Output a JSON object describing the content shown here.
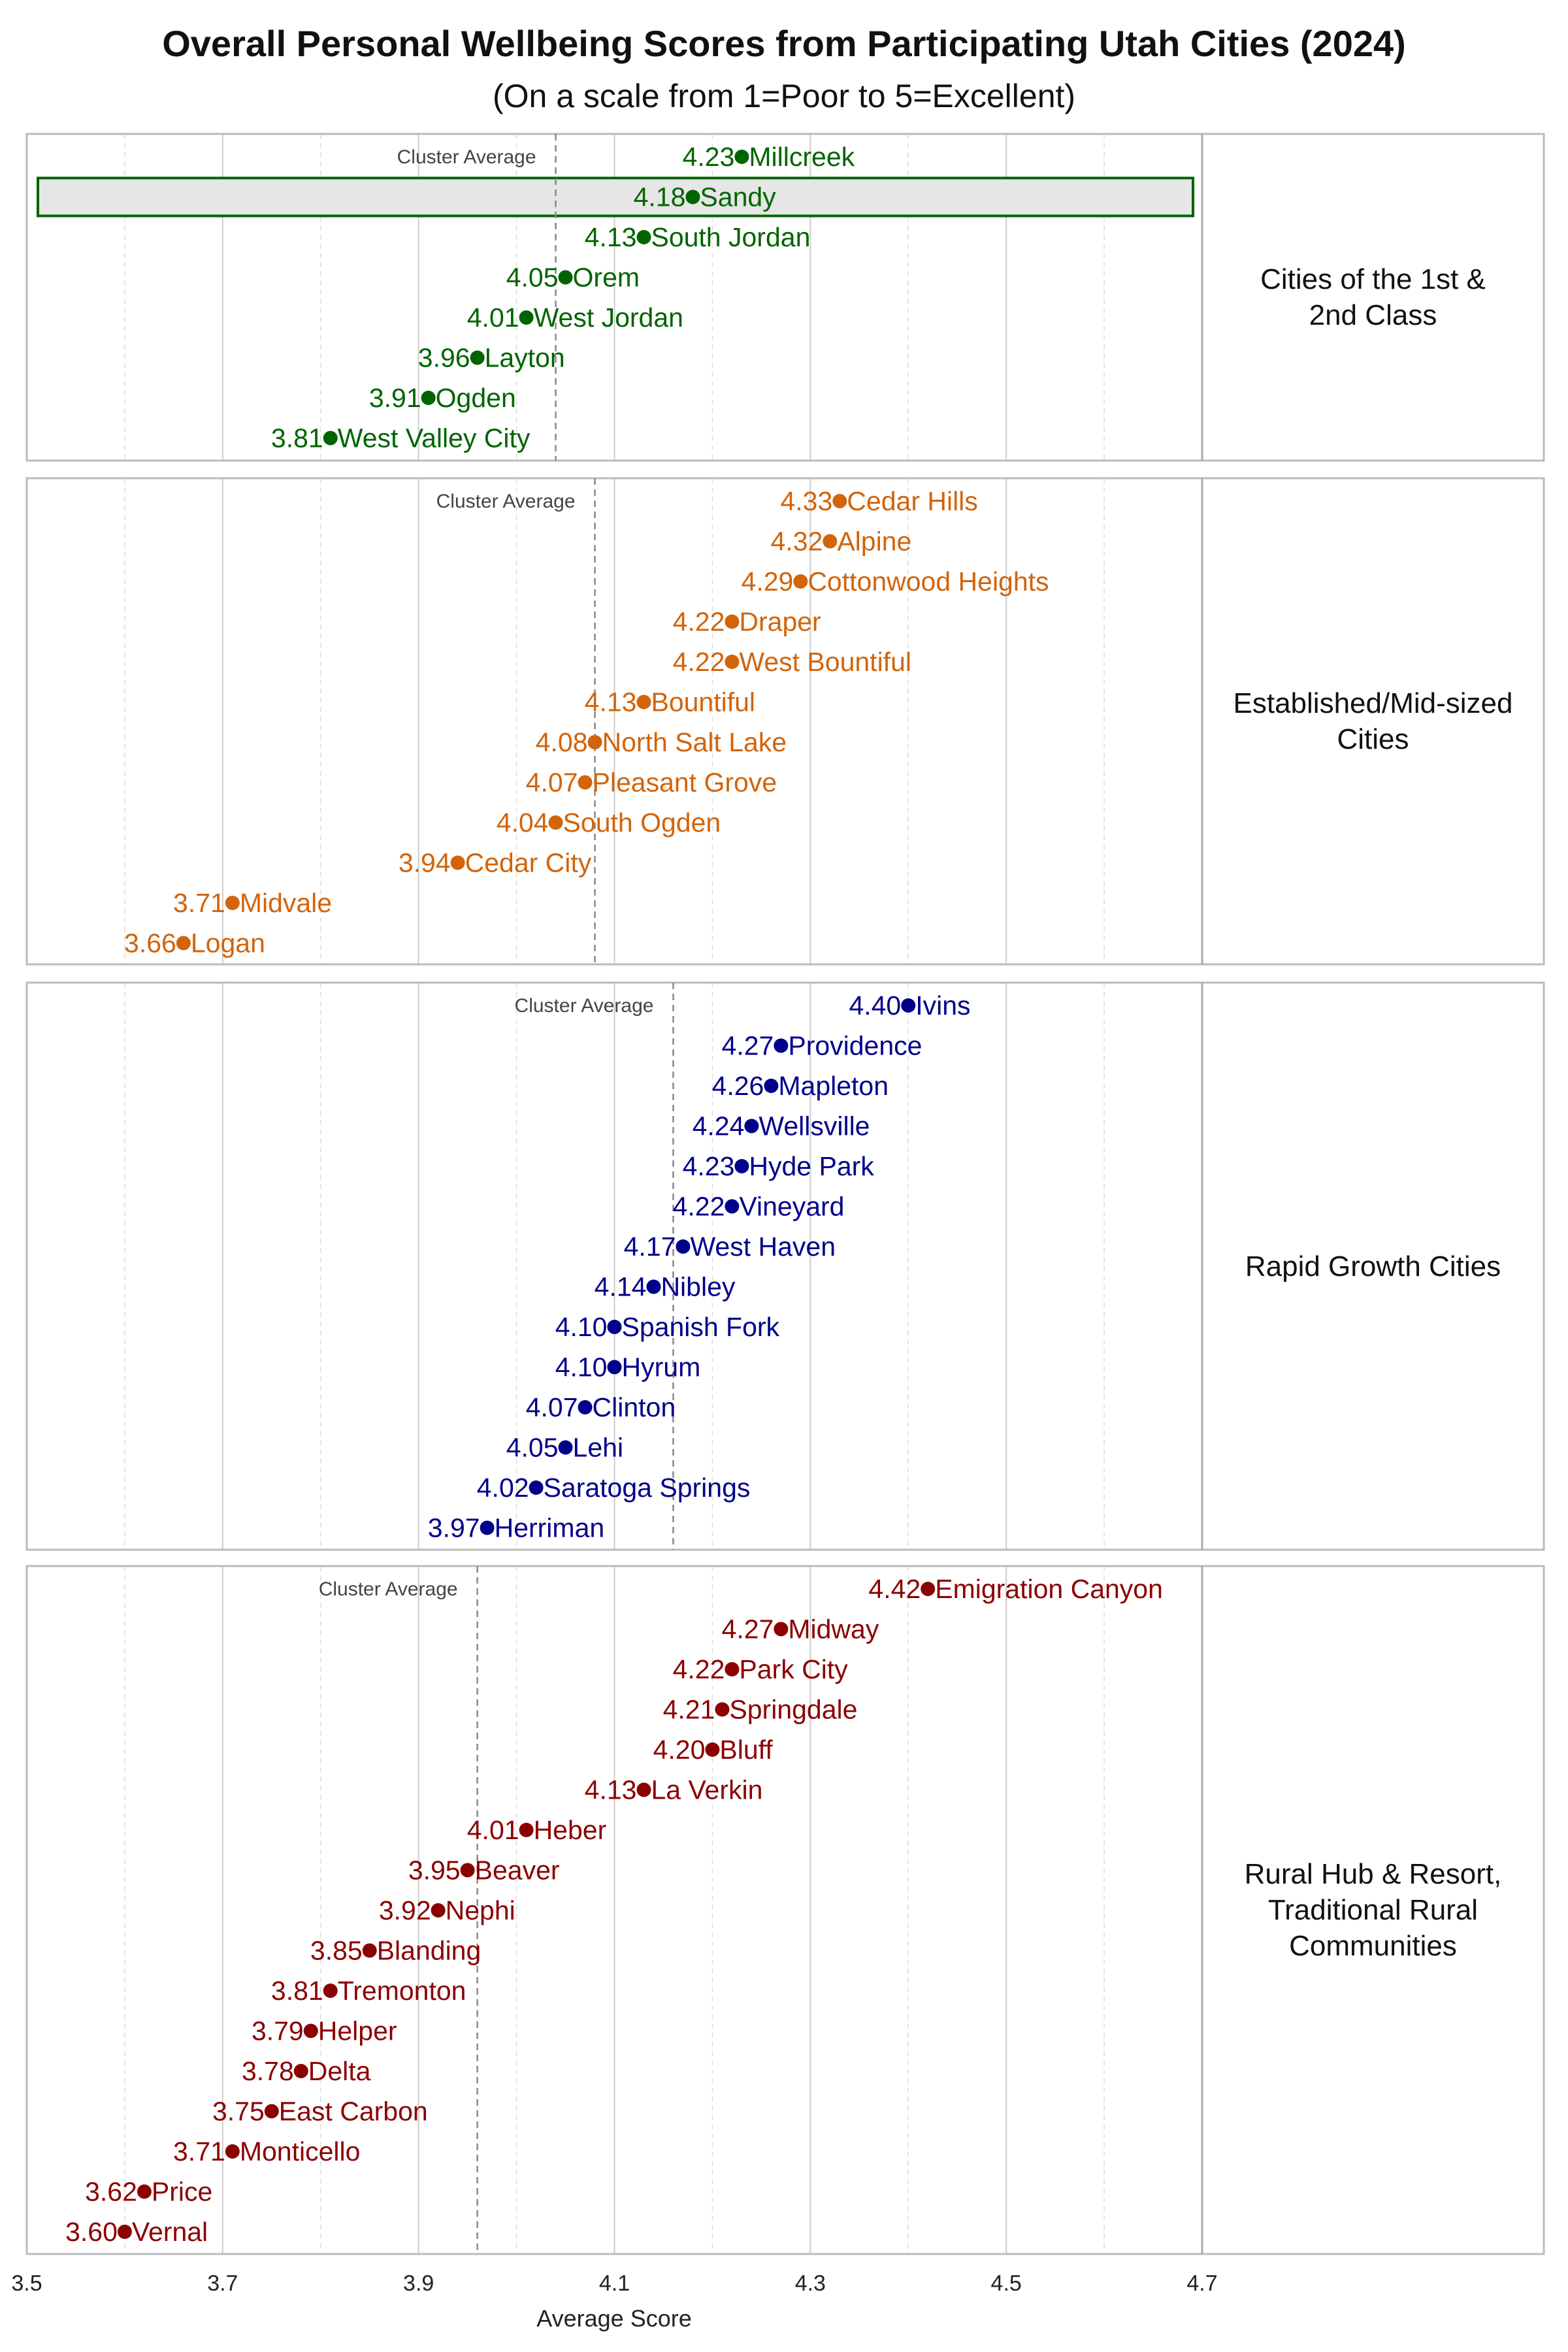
{
  "title": "Overall Personal Wellbeing Scores from Participating Utah Cities (2024)",
  "subtitle": "(On a scale from 1=Poor to 5=Excellent)",
  "chart_data": {
    "type": "scatter",
    "title": "Overall Personal Wellbeing Scores from Participating Utah Cities (2024)",
    "subtitle": "(On a scale from 1=Poor to 5=Excellent)",
    "xlabel": "Average Score",
    "xlim": [
      3.5,
      4.7
    ],
    "xticks": [
      "3.5",
      "3.7",
      "3.9",
      "4.1",
      "4.3",
      "4.5",
      "4.7"
    ],
    "grid": true,
    "cluster_average_label": "Cluster Average",
    "highlight": "Sandy",
    "panels": [
      {
        "name": "Cities of the 1st &\n2nd Class",
        "color": "#006400",
        "cluster_average": 4.04,
        "points": [
          [
            "Millcreek",
            4.23
          ],
          [
            "Sandy",
            4.18
          ],
          [
            "South Jordan",
            4.13
          ],
          [
            "Orem",
            4.05
          ],
          [
            "West Jordan",
            4.01
          ],
          [
            "Layton",
            3.96
          ],
          [
            "Ogden",
            3.91
          ],
          [
            "West Valley City",
            3.81
          ]
        ]
      },
      {
        "name": "Established/Mid-sized\nCities",
        "color": "#d2640a",
        "cluster_average": 4.08,
        "points": [
          [
            "Cedar Hills",
            4.33
          ],
          [
            "Alpine",
            4.32
          ],
          [
            "Cottonwood Heights",
            4.29
          ],
          [
            "Draper",
            4.22
          ],
          [
            "West Bountiful",
            4.22
          ],
          [
            "Bountiful",
            4.13
          ],
          [
            "North Salt Lake",
            4.08
          ],
          [
            "Pleasant Grove",
            4.07
          ],
          [
            "South Ogden",
            4.04
          ],
          [
            "Cedar City",
            3.94
          ],
          [
            "Midvale",
            3.71
          ],
          [
            "Logan",
            3.66
          ]
        ]
      },
      {
        "name": "Rapid Growth Cities",
        "color": "#00008b",
        "cluster_average": 4.16,
        "points": [
          [
            "Ivins",
            4.4
          ],
          [
            "Providence",
            4.27
          ],
          [
            "Mapleton",
            4.26
          ],
          [
            "Wellsville",
            4.24
          ],
          [
            "Hyde Park",
            4.23
          ],
          [
            "Vineyard",
            4.22
          ],
          [
            "West Haven",
            4.17
          ],
          [
            "Nibley",
            4.14
          ],
          [
            "Spanish Fork",
            4.1
          ],
          [
            "Hyrum",
            4.1
          ],
          [
            "Clinton",
            4.07
          ],
          [
            "Lehi",
            4.05
          ],
          [
            "Saratoga Springs",
            4.02
          ],
          [
            "Herriman",
            3.97
          ]
        ]
      },
      {
        "name": "Rural Hub & Resort,\nTraditional Rural\nCommunities",
        "color": "#8b0000",
        "cluster_average": 3.96,
        "points": [
          [
            "Emigration Canyon",
            4.42
          ],
          [
            "Midway",
            4.27
          ],
          [
            "Park City",
            4.22
          ],
          [
            "Springdale",
            4.21
          ],
          [
            "Bluff",
            4.2
          ],
          [
            "La Verkin",
            4.13
          ],
          [
            "Heber",
            4.01
          ],
          [
            "Beaver",
            3.95
          ],
          [
            "Nephi",
            3.92
          ],
          [
            "Blanding",
            3.85
          ],
          [
            "Tremonton",
            3.81
          ],
          [
            "Helper",
            3.79
          ],
          [
            "Delta",
            3.78
          ],
          [
            "East Carbon",
            3.75
          ],
          [
            "Monticello",
            3.71
          ],
          [
            "Price",
            3.62
          ],
          [
            "Vernal",
            3.6
          ]
        ]
      }
    ]
  }
}
